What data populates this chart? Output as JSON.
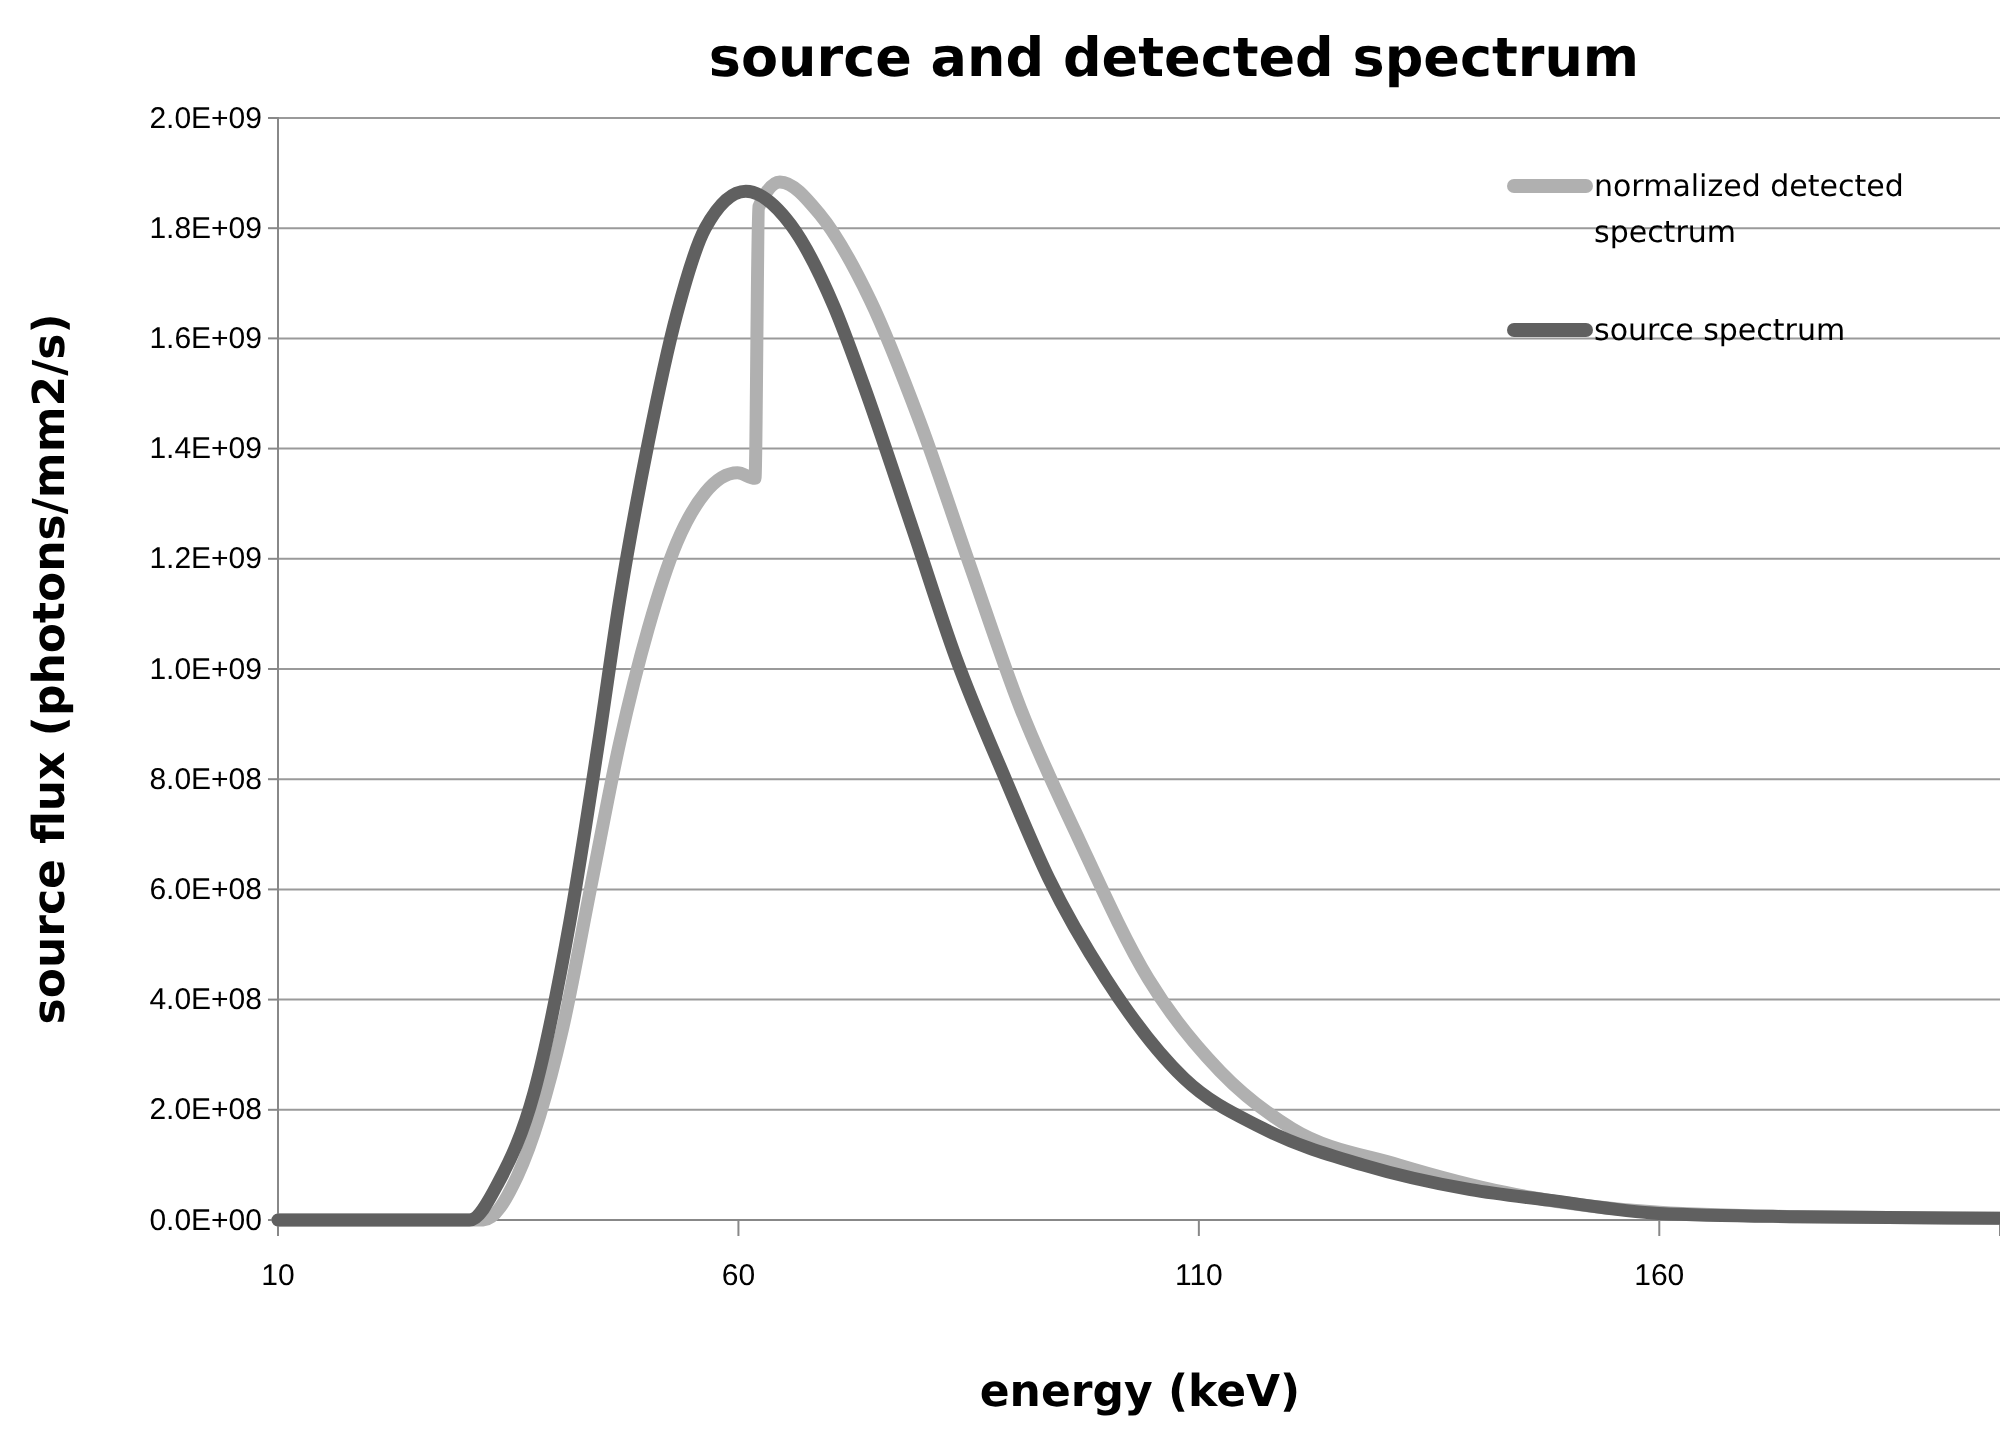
{
  "chart_data": {
    "type": "line",
    "title": "source and detected spectrum",
    "xlabel": "energy (keV)",
    "ylabel": "source flux (photons/mm2/s)",
    "xlim": [
      10,
      197
    ],
    "xticks": [
      10,
      60,
      110,
      160
    ],
    "ylim": [
      0,
      2000000000
    ],
    "yticks": [
      {
        "value": 0,
        "label": "0.0E+00"
      },
      {
        "value": 200000000,
        "label": "2.0E+08"
      },
      {
        "value": 400000000,
        "label": "4.0E+08"
      },
      {
        "value": 600000000,
        "label": "6.0E+08"
      },
      {
        "value": 800000000,
        "label": "8.0E+08"
      },
      {
        "value": 1000000000,
        "label": "1.0E+09"
      },
      {
        "value": 1200000000,
        "label": "1.2E+09"
      },
      {
        "value": 1400000000,
        "label": "1.4E+09"
      },
      {
        "value": 1600000000,
        "label": "1.6E+09"
      },
      {
        "value": 1800000000,
        "label": "1.8E+09"
      },
      {
        "value": 2000000000,
        "label": "2.0E+09"
      }
    ],
    "grid": "y",
    "legend": "top right",
    "marker": "none",
    "line_style": "solid",
    "series": [
      {
        "name": "normalized detected spectrum",
        "color": "#b0b0b0",
        "x": [
          10,
          20,
          30,
          32.3,
          36,
          40.9,
          44,
          47.1,
          50.2,
          53.3,
          56.4,
          59.9,
          61.8,
          62.2,
          64.5,
          68.8,
          74.3,
          79.7,
          85.1,
          90.6,
          96.8,
          104.5,
          112.3,
          120.1,
          131.7,
          143.3,
          160,
          175,
          197
        ],
        "values": [
          0,
          0,
          0,
          0,
          80000000,
          347000000,
          607000000,
          866000000,
          1073000000,
          1229000000,
          1320000000,
          1356000000,
          1346000000,
          1838000000,
          1884000000,
          1826000000,
          1670000000,
          1449000000,
          1190000000,
          930000000,
          697000000,
          438000000,
          270000000,
          166000000,
          100000000,
          50000000,
          14000000,
          6000000,
          3000000
        ]
      },
      {
        "name": "source spectrum",
        "color": "#606060",
        "x": [
          10,
          20,
          30,
          30.8,
          34,
          37.8,
          41.7,
          44.8,
          47.1,
          50.2,
          53.3,
          56.4,
          60.8,
          65.7,
          70.4,
          73.5,
          78.9,
          83.6,
          89,
          93.7,
          99.9,
          108.4,
          117,
          127.8,
          139.5,
          148,
          160,
          175,
          197
        ],
        "values": [
          0,
          0,
          0,
          0,
          70000000,
          231000000,
          542000000,
          866000000,
          1125000000,
          1410000000,
          1644000000,
          1800000000,
          1867000000,
          1806000000,
          1657000000,
          1520000000,
          1255000000,
          1021000000,
          800000000,
          620000000,
          438000000,
          257000000,
          166000000,
          100000000,
          55000000,
          36000000,
          12000000,
          6000000,
          3000000
        ]
      }
    ]
  }
}
